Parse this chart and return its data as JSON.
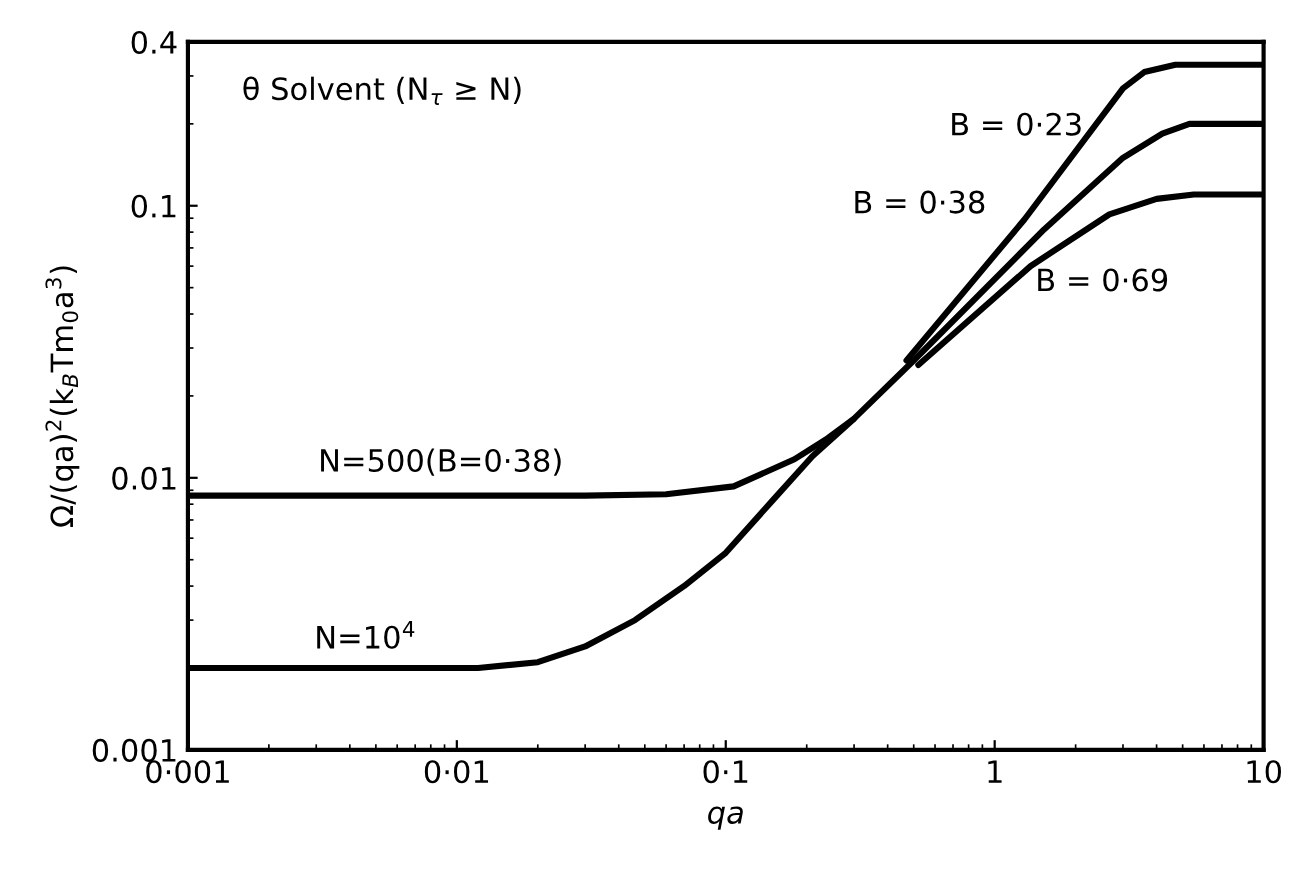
{
  "chart_data": {
    "type": "line",
    "xlabel": "qa",
    "ylabel": "Ω/(qa)$^{2}$(k$_{B}$Tm$_{0}$a$^{3}$)",
    "log": "xy",
    "xlim": [
      0.001,
      10
    ],
    "ylim": [
      0.001,
      0.4
    ],
    "xticks": [
      {
        "value": 0.001,
        "label": "0·001"
      },
      {
        "value": 0.01,
        "label": "0·01"
      },
      {
        "value": 0.1,
        "label": "0·1"
      },
      1,
      10
    ],
    "yticks": [
      0.001,
      0.01,
      0.1,
      0.4
    ],
    "grid": false,
    "legend": false,
    "marker": "none",
    "line_style": "solid",
    "series": [
      {
        "color": "#000000",
        "x": [
          0.001,
          0.012,
          0.02,
          0.03,
          0.046,
          0.07,
          0.1,
          0.15,
          0.21,
          0.3,
          0.5,
          1.53,
          3.0,
          4.2,
          5.3,
          10
        ],
        "values": [
          0.002,
          0.002,
          0.0021,
          0.0024,
          0.003,
          0.004,
          0.0053,
          0.0083,
          0.012,
          0.0165,
          0.027,
          0.082,
          0.15,
          0.184,
          0.2,
          0.2
        ]
      },
      {
        "color": "#000000",
        "x": [
          0.001,
          0.03,
          0.06,
          0.107,
          0.18,
          0.24,
          0.3
        ],
        "values": [
          0.0086,
          0.0086,
          0.0087,
          0.0093,
          0.0117,
          0.014,
          0.0165
        ]
      },
      {
        "color": "#000000",
        "x": [
          0.47,
          1.29,
          3.0,
          3.6,
          4.7,
          10
        ],
        "values": [
          0.027,
          0.089,
          0.27,
          0.31,
          0.33,
          0.33
        ]
      },
      {
        "color": "#000000",
        "x": [
          0.52,
          1.36,
          2.67,
          4.0,
          5.5,
          10
        ],
        "values": [
          0.026,
          0.06,
          0.093,
          0.106,
          0.11,
          0.11
        ]
      }
    ],
    "annotations": [
      "θ Solvent (N$_{τ}$ ≥ N)",
      "B = 0·23",
      "B = 0·38",
      "B = 0·69",
      "N=500(B=0·38)",
      "N=10$^{4}$"
    ]
  }
}
